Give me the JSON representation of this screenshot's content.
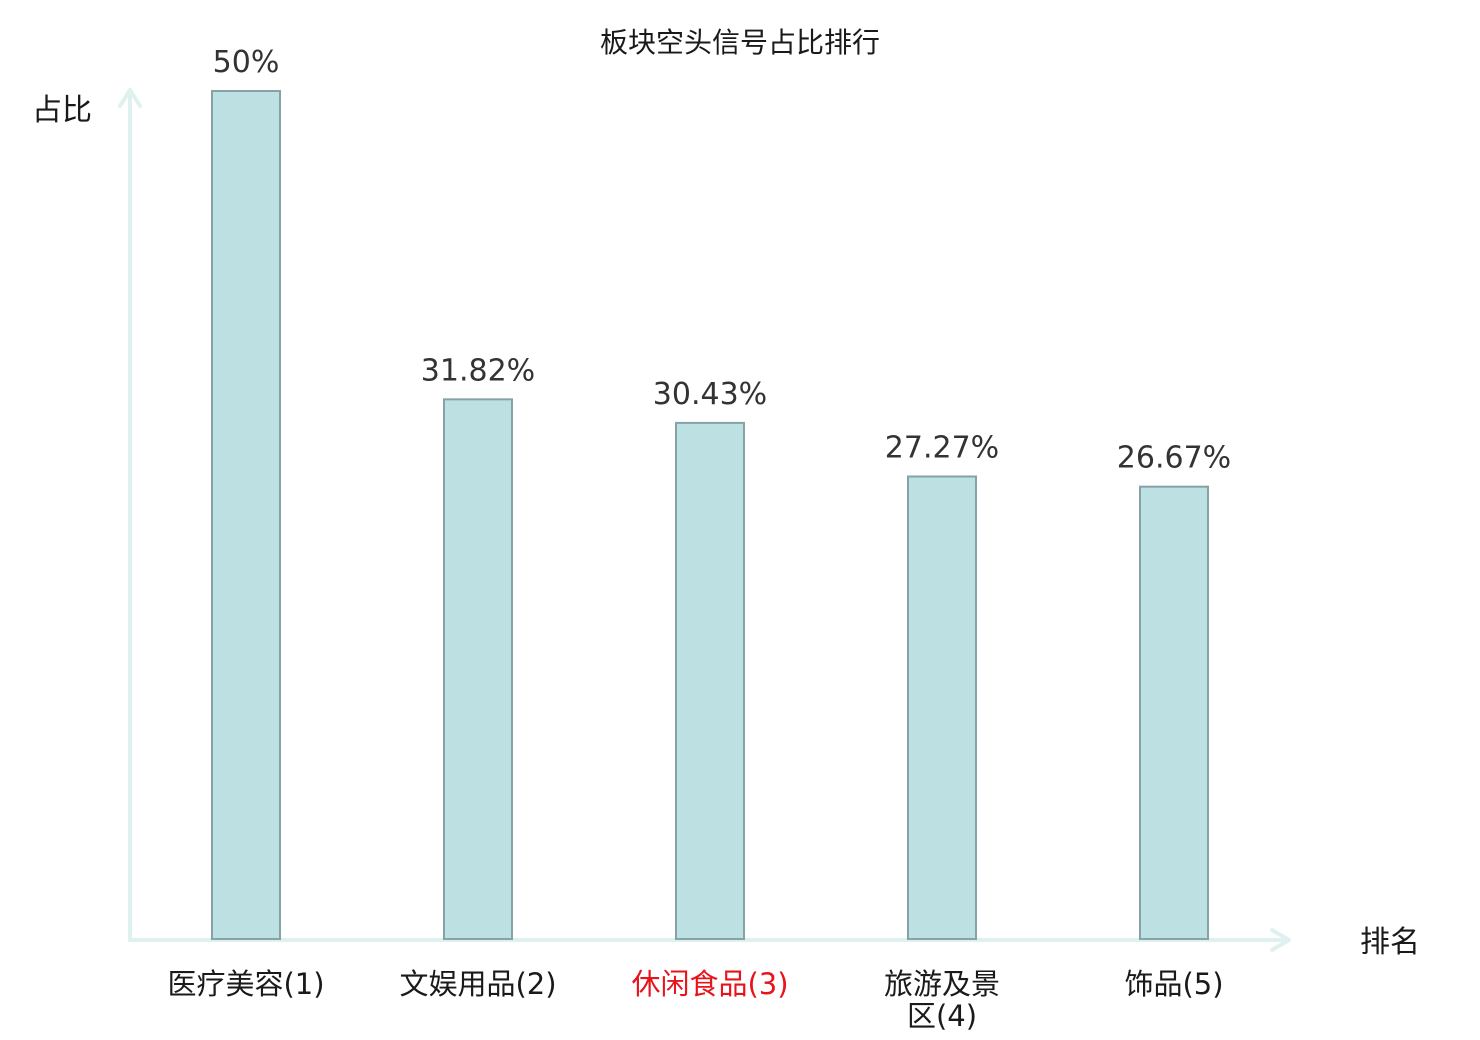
{
  "chart_data": {
    "type": "bar",
    "title": "板块空头信号占比排行",
    "ylabel": "占比",
    "xlabel": "排名",
    "categories": [
      {
        "lines": [
          "医疗美容(1)"
        ],
        "highlight": false
      },
      {
        "lines": [
          "文娱用品(2)"
        ],
        "highlight": false
      },
      {
        "lines": [
          "休闲食品(3)"
        ],
        "highlight": true
      },
      {
        "lines": [
          "旅游及景",
          "区(4)"
        ],
        "highlight": false
      },
      {
        "lines": [
          "饰品(5)"
        ],
        "highlight": false
      }
    ],
    "values": [
      50,
      31.82,
      30.43,
      27.27,
      26.67
    ],
    "value_labels": [
      "50%",
      "31.82%",
      "30.43%",
      "27.27%",
      "26.67%"
    ],
    "ylim": [
      0,
      50
    ],
    "grid": false,
    "legend": "none"
  },
  "colors": {
    "bar_fill": "#bde0e2",
    "bar_stroke": "#86a2a6",
    "axis": "#dff1ef",
    "text": "#1a1a1a",
    "highlight": "#e8141c"
  }
}
